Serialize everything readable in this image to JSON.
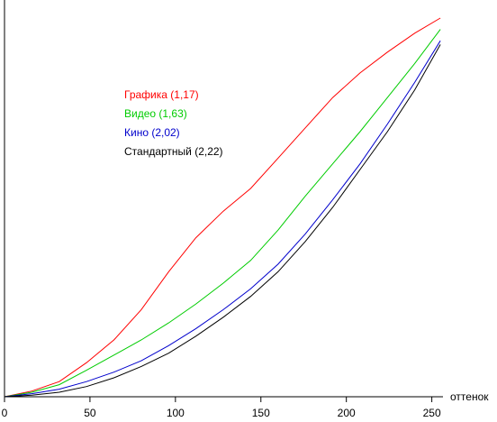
{
  "chart_data": {
    "type": "line",
    "xlabel": "оттенок",
    "ylabel": "",
    "xlim": [
      0,
      256
    ],
    "ylim": [
      0,
      1
    ],
    "x_ticks": [
      0,
      50,
      100,
      150,
      200,
      250
    ],
    "grid": false,
    "legend_placement": "top-left",
    "series": [
      {
        "name": "Графика (1,17)",
        "color": "#ff0000",
        "x": [
          0,
          16,
          32,
          48,
          64,
          80,
          96,
          112,
          128,
          144,
          160,
          176,
          192,
          208,
          224,
          240,
          255
        ],
        "values": [
          0.0,
          0.015,
          0.04,
          0.09,
          0.15,
          0.23,
          0.33,
          0.42,
          0.49,
          0.55,
          0.63,
          0.71,
          0.79,
          0.855,
          0.91,
          0.96,
          1.0
        ]
      },
      {
        "name": "Видео (1,63)",
        "color": "#00cc00",
        "x": [
          0,
          16,
          32,
          48,
          64,
          80,
          96,
          112,
          128,
          144,
          160,
          176,
          192,
          208,
          224,
          240,
          255
        ],
        "values": [
          0.0,
          0.012,
          0.032,
          0.07,
          0.11,
          0.15,
          0.195,
          0.245,
          0.3,
          0.36,
          0.44,
          0.53,
          0.615,
          0.7,
          0.79,
          0.88,
          0.97
        ]
      },
      {
        "name": "Кино (2,02)",
        "color": "#0000cc",
        "x": [
          0,
          16,
          32,
          48,
          64,
          80,
          96,
          112,
          128,
          144,
          160,
          176,
          192,
          208,
          224,
          240,
          255
        ],
        "values": [
          0.0,
          0.008,
          0.02,
          0.04,
          0.065,
          0.095,
          0.135,
          0.18,
          0.23,
          0.285,
          0.35,
          0.43,
          0.52,
          0.615,
          0.72,
          0.83,
          0.94
        ]
      },
      {
        "name": "Стандартный (2,22)",
        "color": "#000000",
        "x": [
          0,
          16,
          32,
          48,
          64,
          80,
          96,
          112,
          128,
          144,
          160,
          176,
          192,
          208,
          224,
          240,
          255
        ],
        "values": [
          0.0,
          0.004,
          0.012,
          0.027,
          0.05,
          0.08,
          0.115,
          0.16,
          0.21,
          0.265,
          0.33,
          0.41,
          0.5,
          0.6,
          0.7,
          0.81,
          0.93
        ]
      }
    ]
  }
}
